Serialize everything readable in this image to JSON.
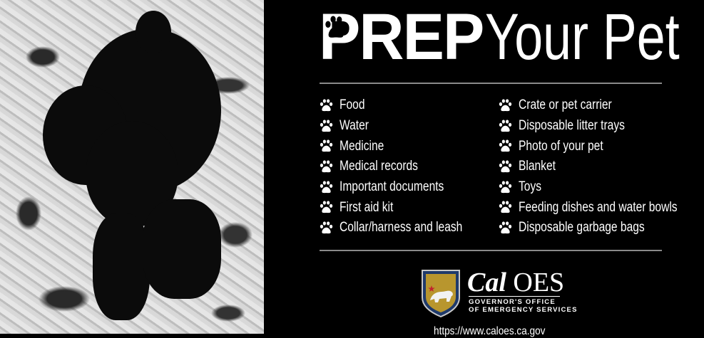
{
  "title": {
    "bold": "PREP",
    "regular": "Your Pet",
    "icon": "paw-icon"
  },
  "list_left": [
    "Food",
    "Water",
    "Medicine",
    "Medical records",
    "Important documents",
    "First aid kit",
    "Collar/harness and leash"
  ],
  "list_right": [
    "Crate or pet carrier",
    "Disposable litter trays",
    "Photo of your pet",
    "Blanket",
    "Toys",
    "Feeding dishes and water bowls",
    "Disposable garbage bags"
  ],
  "logo": {
    "name_italic": "Cal",
    "name": "OES",
    "line1": "GOVERNOR'S OFFICE",
    "line2": "OF EMERGENCY SERVICES",
    "colors": {
      "gold": "#b8962e",
      "navy": "#1f3a6b"
    }
  },
  "url": "https://www.caloes.ca.gov"
}
